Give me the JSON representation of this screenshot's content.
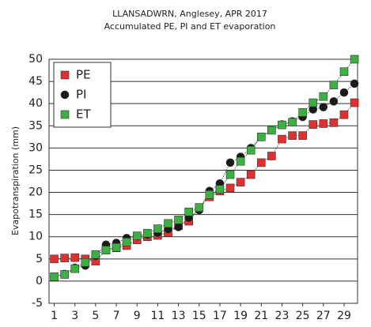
{
  "chart_data": {
    "type": "line",
    "title": "LLANSADWRN, Anglesey, APR 2017",
    "subtitle": "Accumulated PE, PI and ET evaporation",
    "y_label": "Evapotranspiration (mm)",
    "x": [
      1,
      2,
      3,
      4,
      5,
      6,
      7,
      8,
      9,
      10,
      11,
      12,
      13,
      14,
      15,
      16,
      17,
      18,
      19,
      20,
      21,
      22,
      23,
      24,
      25,
      26,
      27,
      28,
      29,
      30
    ],
    "xlim": [
      0.5,
      30.3
    ],
    "xticks": [
      1,
      3,
      5,
      7,
      9,
      11,
      13,
      15,
      17,
      19,
      21,
      23,
      25,
      27,
      29
    ],
    "ylim": [
      -5,
      50
    ],
    "yticks": [
      -5,
      0,
      5,
      10,
      15,
      20,
      25,
      30,
      35,
      40,
      45,
      50
    ],
    "grid": true,
    "legend": "top-left",
    "series": [
      {
        "name": "PE",
        "color": "#e03030",
        "marker": "square",
        "values": [
          5,
          5.2,
          5.3,
          5,
          4.5,
          7,
          7.5,
          8,
          9.3,
          10,
          10.3,
          11,
          12.5,
          13.5,
          16.5,
          19,
          20.3,
          21,
          22.3,
          24,
          26.7,
          28.2,
          32,
          32.8,
          32.8,
          35.3,
          35.5,
          35.7,
          37.5,
          40.2
        ]
      },
      {
        "name": "PI",
        "color": "#1a1a1a",
        "marker": "circle",
        "values": [
          1,
          1.6,
          3,
          3.5,
          5.7,
          8.2,
          8.6,
          9.7,
          10.1,
          10.5,
          10.9,
          11.7,
          12.2,
          14.3,
          16,
          20.3,
          22,
          26.7,
          28,
          30,
          32.5,
          34,
          35.3,
          36,
          37,
          38.7,
          39.2,
          40.5,
          42.5,
          44.5
        ]
      },
      {
        "name": "ET",
        "color": "#3cb043",
        "marker": "square",
        "values": [
          1,
          1.5,
          2.8,
          4.2,
          6,
          7,
          7.6,
          8.8,
          10.2,
          10.8,
          11.8,
          13,
          13.8,
          15.6,
          16.6,
          19.5,
          20.7,
          24,
          27,
          29.5,
          32.5,
          34,
          35.2,
          35.8,
          38,
          40.2,
          41.6,
          44.2,
          47.2,
          50
        ]
      }
    ]
  }
}
